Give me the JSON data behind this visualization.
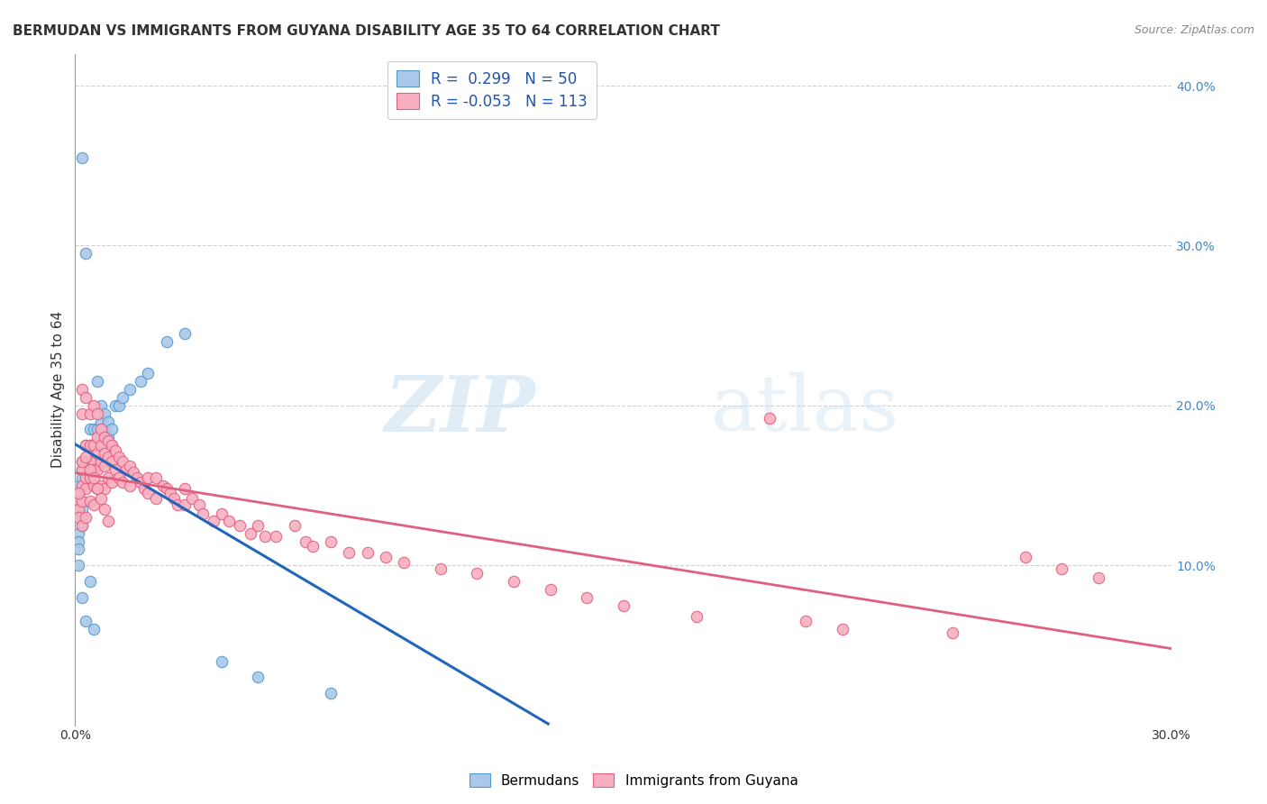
{
  "title": "BERMUDAN VS IMMIGRANTS FROM GUYANA DISABILITY AGE 35 TO 64 CORRELATION CHART",
  "source": "Source: ZipAtlas.com",
  "ylabel": "Disability Age 35 to 64",
  "xlim": [
    0.0,
    0.3
  ],
  "ylim": [
    0.0,
    0.42
  ],
  "legend_entries": [
    {
      "label": "R =  0.299   N = 50",
      "color": "#aac8e8",
      "edge": "#5599cc"
    },
    {
      "label": "R = -0.053   N = 113",
      "color": "#f8b0c0",
      "edge": "#e06080"
    }
  ],
  "bermudans": {
    "color": "#aac8e8",
    "edge_color": "#5599cc",
    "line_color": "#2266bb",
    "dash_color": "#aaccdd",
    "x": [
      0.001,
      0.001,
      0.001,
      0.001,
      0.002,
      0.002,
      0.002,
      0.002,
      0.002,
      0.002,
      0.003,
      0.003,
      0.003,
      0.003,
      0.003,
      0.004,
      0.004,
      0.004,
      0.004,
      0.005,
      0.005,
      0.005,
      0.005,
      0.006,
      0.006,
      0.006,
      0.007,
      0.007,
      0.007,
      0.008,
      0.008,
      0.009,
      0.009,
      0.01,
      0.01,
      0.011,
      0.012,
      0.013,
      0.015,
      0.018,
      0.02,
      0.025,
      0.03,
      0.04,
      0.05,
      0.07,
      0.001,
      0.001,
      0.002,
      0.002
    ],
    "y": [
      0.12,
      0.115,
      0.11,
      0.1,
      0.355,
      0.14,
      0.135,
      0.13,
      0.125,
      0.08,
      0.295,
      0.175,
      0.165,
      0.155,
      0.065,
      0.185,
      0.175,
      0.165,
      0.09,
      0.185,
      0.175,
      0.165,
      0.06,
      0.215,
      0.185,
      0.175,
      0.2,
      0.19,
      0.18,
      0.195,
      0.185,
      0.19,
      0.18,
      0.185,
      0.175,
      0.2,
      0.2,
      0.205,
      0.21,
      0.215,
      0.22,
      0.24,
      0.245,
      0.04,
      0.03,
      0.02,
      0.15,
      0.145,
      0.16,
      0.155
    ]
  },
  "guyana": {
    "color": "#f8b0c0",
    "edge_color": "#e06080",
    "line_color": "#e06080",
    "x": [
      0.001,
      0.001,
      0.001,
      0.001,
      0.002,
      0.002,
      0.002,
      0.002,
      0.002,
      0.002,
      0.002,
      0.003,
      0.003,
      0.003,
      0.003,
      0.003,
      0.003,
      0.004,
      0.004,
      0.004,
      0.004,
      0.004,
      0.005,
      0.005,
      0.005,
      0.005,
      0.005,
      0.005,
      0.006,
      0.006,
      0.006,
      0.006,
      0.006,
      0.007,
      0.007,
      0.007,
      0.007,
      0.008,
      0.008,
      0.008,
      0.008,
      0.009,
      0.009,
      0.009,
      0.01,
      0.01,
      0.01,
      0.011,
      0.011,
      0.012,
      0.012,
      0.013,
      0.013,
      0.014,
      0.015,
      0.015,
      0.016,
      0.017,
      0.018,
      0.019,
      0.02,
      0.02,
      0.022,
      0.022,
      0.024,
      0.025,
      0.026,
      0.027,
      0.028,
      0.03,
      0.03,
      0.032,
      0.034,
      0.035,
      0.038,
      0.04,
      0.042,
      0.045,
      0.048,
      0.05,
      0.052,
      0.055,
      0.06,
      0.063,
      0.065,
      0.07,
      0.075,
      0.08,
      0.085,
      0.09,
      0.1,
      0.11,
      0.12,
      0.13,
      0.14,
      0.15,
      0.17,
      0.19,
      0.2,
      0.21,
      0.24,
      0.26,
      0.27,
      0.28,
      0.001,
      0.002,
      0.003,
      0.004,
      0.005,
      0.006,
      0.007,
      0.008,
      0.009
    ],
    "y": [
      0.145,
      0.14,
      0.135,
      0.13,
      0.21,
      0.195,
      0.165,
      0.16,
      0.15,
      0.14,
      0.125,
      0.205,
      0.175,
      0.165,
      0.155,
      0.148,
      0.13,
      0.195,
      0.175,
      0.165,
      0.155,
      0.14,
      0.2,
      0.175,
      0.165,
      0.16,
      0.15,
      0.138,
      0.195,
      0.18,
      0.17,
      0.16,
      0.148,
      0.185,
      0.175,
      0.165,
      0.15,
      0.18,
      0.17,
      0.162,
      0.148,
      0.178,
      0.168,
      0.155,
      0.175,
      0.165,
      0.152,
      0.172,
      0.16,
      0.168,
      0.155,
      0.165,
      0.152,
      0.16,
      0.162,
      0.15,
      0.158,
      0.155,
      0.152,
      0.148,
      0.155,
      0.145,
      0.155,
      0.142,
      0.15,
      0.148,
      0.145,
      0.142,
      0.138,
      0.148,
      0.138,
      0.142,
      0.138,
      0.132,
      0.128,
      0.132,
      0.128,
      0.125,
      0.12,
      0.125,
      0.118,
      0.118,
      0.125,
      0.115,
      0.112,
      0.115,
      0.108,
      0.108,
      0.105,
      0.102,
      0.098,
      0.095,
      0.09,
      0.085,
      0.08,
      0.075,
      0.068,
      0.192,
      0.065,
      0.06,
      0.058,
      0.105,
      0.098,
      0.092,
      0.145,
      0.165,
      0.168,
      0.16,
      0.155,
      0.148,
      0.142,
      0.135,
      0.128
    ]
  },
  "watermark_zip": "ZIP",
  "watermark_atlas": "atlas",
  "bg_color": "#ffffff",
  "grid_color": "#cccccc"
}
